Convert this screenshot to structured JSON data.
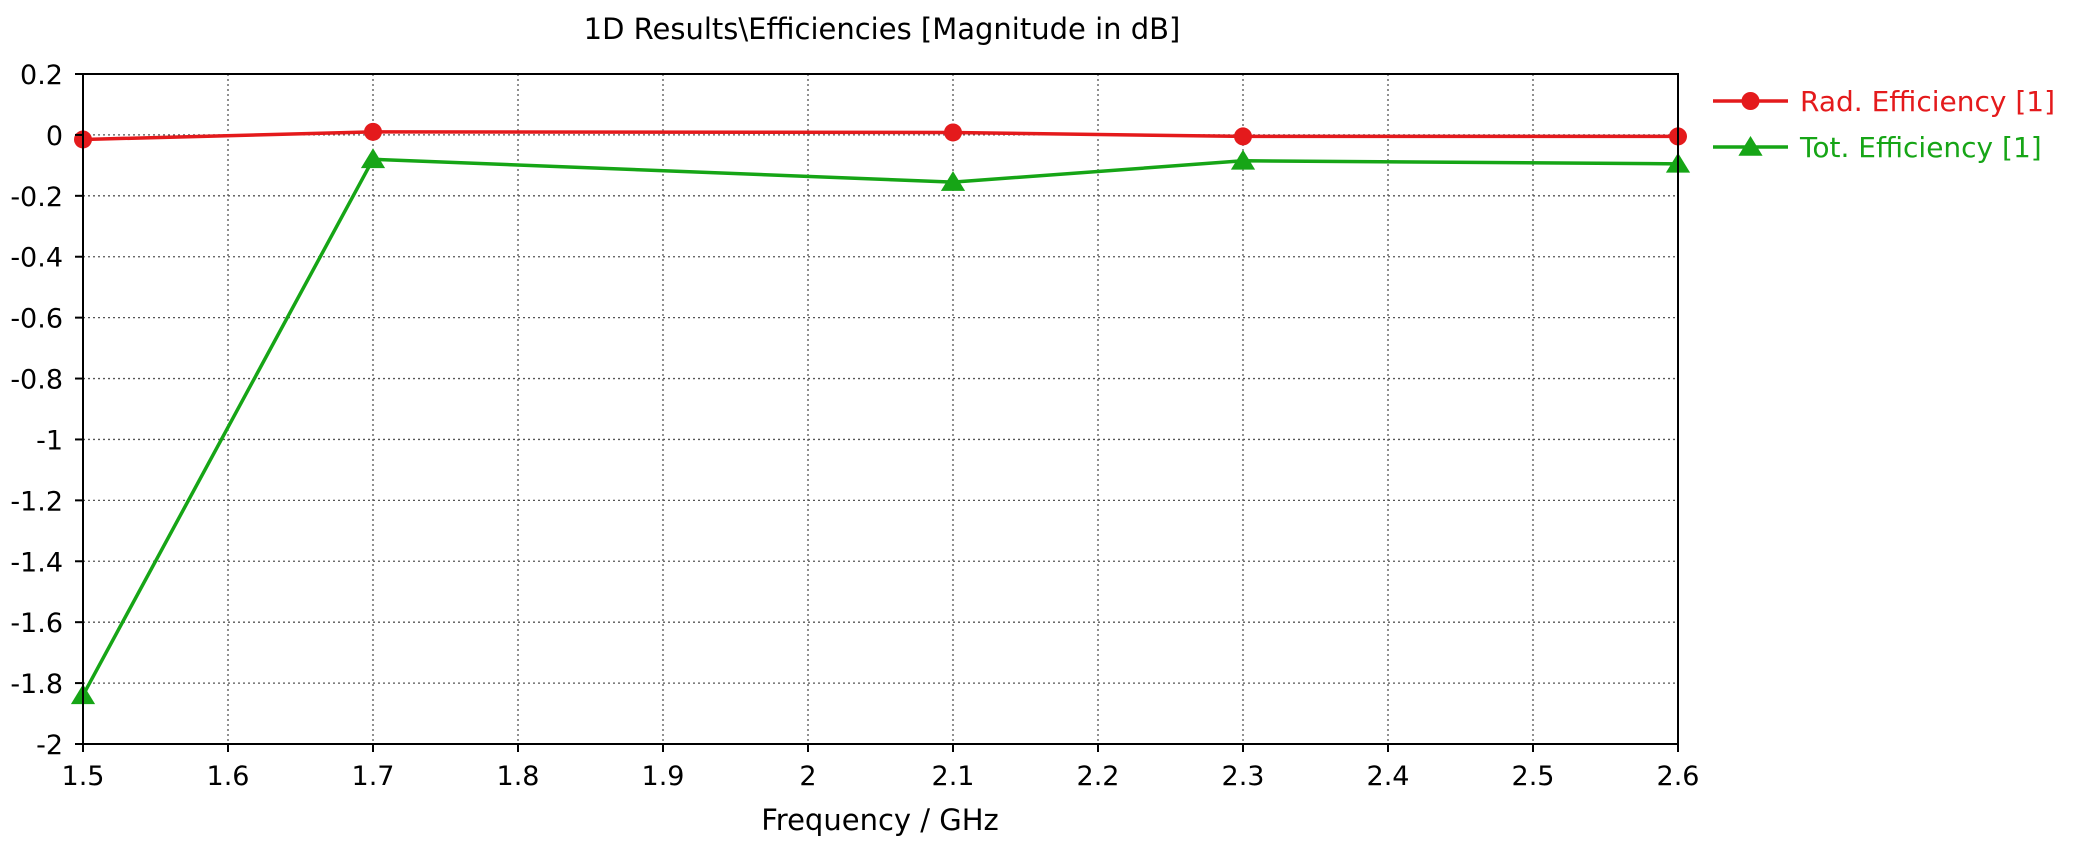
{
  "chart_data": {
    "type": "line",
    "title": "1D Results\\Efficiencies [Magnitude in dB]",
    "xlabel": "Frequency / GHz",
    "ylabel": "",
    "xlim": [
      1.5,
      2.6
    ],
    "ylim": [
      -2,
      0.2
    ],
    "x_ticks": [
      "1.5",
      "1.6",
      "1.7",
      "1.8",
      "1.9",
      "2",
      "2.1",
      "2.2",
      "2.3",
      "2.4",
      "2.5",
      "2.6"
    ],
    "y_ticks": [
      "0.2",
      "0",
      "-0.2",
      "-0.4",
      "-0.6",
      "-0.8",
      "-1",
      "-1.2",
      "-1.4",
      "-1.6",
      "-1.8",
      "-2"
    ],
    "grid": true,
    "legend_position": "right",
    "series": [
      {
        "name": "Rad. Efficiency [1]",
        "color": "#e41a1c",
        "marker": "circle",
        "x": [
          1.5,
          1.7,
          2.1,
          2.3,
          2.6
        ],
        "y": [
          -0.015,
          0.01,
          0.008,
          -0.005,
          -0.005
        ]
      },
      {
        "name": "Tot. Efficiency [1]",
        "color": "#16a516",
        "marker": "triangle",
        "x": [
          1.5,
          1.7,
          2.1,
          2.3,
          2.6
        ],
        "y": [
          -1.84,
          -0.08,
          -0.155,
          -0.085,
          -0.095
        ]
      }
    ]
  }
}
